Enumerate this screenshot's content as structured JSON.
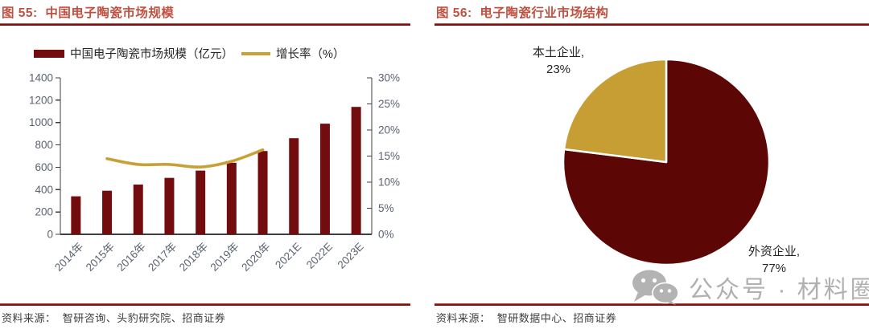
{
  "figures": [
    {
      "title": "图 55:  中国电子陶瓷市场规模",
      "source": "资料来源：  智研咨询、头豹研究院、招商证券"
    },
    {
      "title": "图 56:  电子陶瓷行业市场结构",
      "source": "资料来源：  智研数据中心、招商证券"
    }
  ],
  "chart_data": [
    {
      "type": "bar",
      "title": "中国电子陶瓷市场规模",
      "categories": [
        "2014年",
        "2015年",
        "2016年",
        "2017年",
        "2018年",
        "2019年",
        "2020年",
        "2021E",
        "2022E",
        "2023E"
      ],
      "series": [
        {
          "name": "中国电子陶瓷市场规模（亿元）",
          "type": "bar",
          "axis": "left",
          "color": "#730c0e",
          "values": [
            340,
            390,
            445,
            505,
            570,
            640,
            745,
            860,
            990,
            1140
          ]
        },
        {
          "name": "增长率（%）",
          "type": "line",
          "axis": "right",
          "color": "#c8a136",
          "values": [
            null,
            14.5,
            13.4,
            13.4,
            12.9,
            14.0,
            16.2,
            null,
            null,
            null
          ]
        }
      ],
      "left_axis": {
        "min": 0,
        "max": 1400,
        "step": 200,
        "suffix": ""
      },
      "right_axis": {
        "min": 0,
        "max": 30,
        "step": 5,
        "suffix": "%"
      },
      "grid": false,
      "legend_position": "top"
    },
    {
      "type": "pie",
      "title": "电子陶瓷行业市场结构",
      "slices": [
        {
          "label": "外资企业",
          "pct": 77,
          "color": "#5d0606",
          "display": [
            "外资企业,",
            "77%"
          ]
        },
        {
          "label": "本土企业",
          "pct": 23,
          "color": "#c79e33",
          "display": [
            "本土企业,",
            "23%"
          ]
        }
      ],
      "start_angle_deg": 0,
      "clockwise": true
    }
  ],
  "watermark": {
    "icon": "wechat-icon",
    "text": "公众号 · 材料圈"
  },
  "colors": {
    "title": "#C05040",
    "rule_dark": "#7b1113",
    "rule_light": "#b84a3c",
    "axis": "#3f3f3f",
    "axis_label": "#5b6370",
    "bar": "#730c0e",
    "growth_line": "#c8a136",
    "pie_foreign": "#5d0606",
    "pie_local": "#c79e33",
    "watermark": "#b0b0b0"
  }
}
